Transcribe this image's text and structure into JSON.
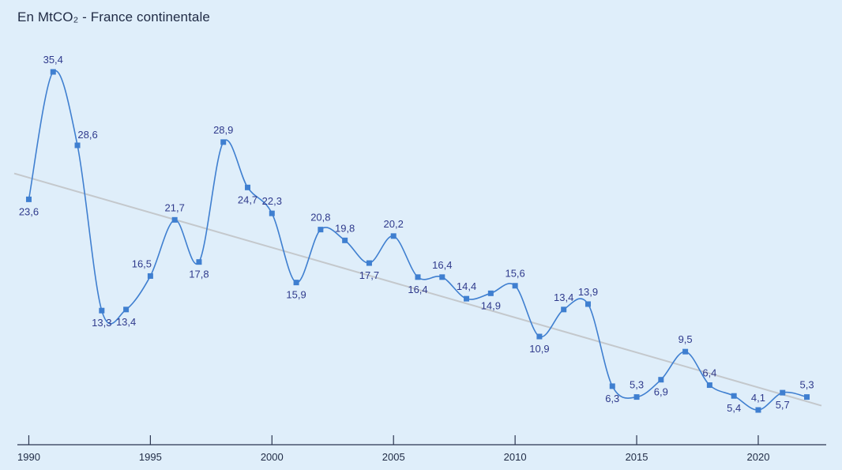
{
  "chart_data": {
    "type": "line",
    "title": "En MtCO₂ - France continentale",
    "xlabel": "",
    "ylabel": "",
    "x": [
      1990,
      1991,
      1992,
      1993,
      1994,
      1995,
      1996,
      1997,
      1998,
      1999,
      2000,
      2001,
      2002,
      2003,
      2004,
      2005,
      2006,
      2007,
      2008,
      2009,
      2010,
      2011,
      2012,
      2013,
      2014,
      2015,
      2016,
      2017,
      2018,
      2019,
      2020,
      2021,
      2022
    ],
    "series": [
      {
        "values": [
          23.6,
          35.4,
          28.6,
          13.3,
          13.4,
          16.5,
          21.7,
          17.8,
          28.9,
          24.7,
          22.3,
          15.9,
          20.8,
          19.8,
          17.7,
          20.2,
          16.4,
          16.4,
          14.4,
          14.9,
          15.6,
          10.9,
          13.4,
          13.9,
          6.3,
          5.3,
          6.9,
          9.5,
          6.4,
          5.4,
          4.1,
          5.7,
          5.3
        ],
        "labels": [
          "23,6",
          "35,4",
          "28,6",
          "13,3",
          "13,4",
          "16,5",
          "21,7",
          "17,8",
          "28,9",
          "24,7",
          "22,3",
          "15,9",
          "20,8",
          "19,8",
          "17,7",
          "20,2",
          "16,4",
          "16,4",
          "14,4",
          "14,9",
          "15,6",
          "10,9",
          "13,4",
          "13,9",
          "6,3",
          "5,3",
          "6,9",
          "9,5",
          "6,4",
          "5,4",
          "4,1",
          "5,7",
          "5,3"
        ],
        "label_pos": [
          "below",
          "above",
          "above-right",
          "below",
          "below",
          "above-left",
          "above",
          "below",
          "above",
          "below",
          "above",
          "below",
          "above",
          "above",
          "below",
          "above",
          "below",
          "above",
          "above",
          "below",
          "above",
          "below",
          "above",
          "above",
          "below",
          "above",
          "below",
          "above",
          "above",
          "below",
          "above",
          "below",
          "above"
        ]
      }
    ],
    "trend": {
      "start": [
        1989.4,
        26.0
      ],
      "end": [
        2022.6,
        4.5
      ]
    },
    "xticks": [
      1990,
      1995,
      2000,
      2005,
      2010,
      2015,
      2020
    ],
    "xlim": [
      1989.4,
      2022.6
    ],
    "ylim": [
      4.1,
      35.4
    ],
    "grid": false,
    "colors": {
      "line": "#3f7fd0",
      "marker": "#3f7fd0",
      "trend": "#c4c8cc",
      "axis": "#2b3550",
      "label": "#2f3a8c"
    }
  }
}
